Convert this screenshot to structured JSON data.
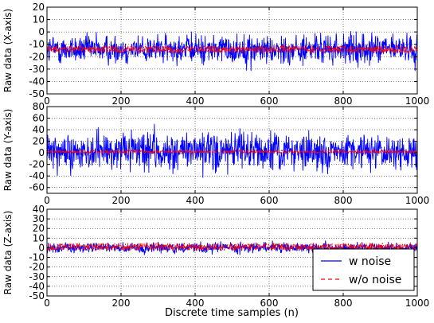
{
  "figure": {
    "xlabel": "Discrete time samples (n)"
  },
  "chart_data": [
    {
      "type": "line",
      "ylabel": "Raw data (X-axis)",
      "xlim": [
        0,
        1000
      ],
      "ylim": [
        -50,
        20
      ],
      "xticks": [
        0,
        200,
        400,
        600,
        800,
        1000
      ],
      "yticks": [
        20,
        10,
        0,
        -10,
        -20,
        -30,
        -40,
        -50
      ],
      "grid": true,
      "noisy": {
        "center": -14,
        "amplitude": 20,
        "peak_min": -37,
        "peak_max": 8,
        "color": "#0000ff"
      },
      "clean": {
        "center": -14,
        "amplitude": 3,
        "color": "#ff0000",
        "style": "dashed"
      },
      "n": 1000
    },
    {
      "type": "line",
      "ylabel": "Raw data (Y-axis)",
      "xlim": [
        0,
        1000
      ],
      "ylim": [
        -70,
        80
      ],
      "xticks": [
        0,
        200,
        400,
        600,
        800,
        1000
      ],
      "yticks": [
        80,
        60,
        40,
        20,
        0,
        -20,
        -40,
        -60
      ],
      "grid": true,
      "noisy": {
        "center": 2,
        "amplitude": 55,
        "peak_min": -60,
        "peak_max": 57,
        "color": "#0000ff"
      },
      "clean": {
        "center": 2,
        "amplitude": 3,
        "color": "#ff0000",
        "style": "dashed"
      },
      "n": 1000
    },
    {
      "type": "line",
      "ylabel": "Raw data (Z-axis)",
      "xlim": [
        0,
        1000
      ],
      "ylim": [
        -50,
        40
      ],
      "xticks": [
        0,
        200,
        400,
        600,
        800,
        1000
      ],
      "yticks": [
        40,
        30,
        20,
        10,
        0,
        -10,
        -20,
        -30,
        -40,
        -50
      ],
      "grid": true,
      "noisy": {
        "center": 0,
        "amplitude": 9,
        "peak_min": -15,
        "peak_max": 17,
        "color": "#0000ff"
      },
      "clean": {
        "center": 1,
        "amplitude": 4,
        "color": "#ff0000",
        "style": "dashed"
      },
      "n": 1000,
      "legend": {
        "position": "lower-right",
        "entries": [
          {
            "label": "w noise",
            "color": "#0000ff",
            "style": "solid"
          },
          {
            "label": "w/o noise",
            "color": "#ff0000",
            "style": "dashed"
          }
        ]
      }
    }
  ]
}
